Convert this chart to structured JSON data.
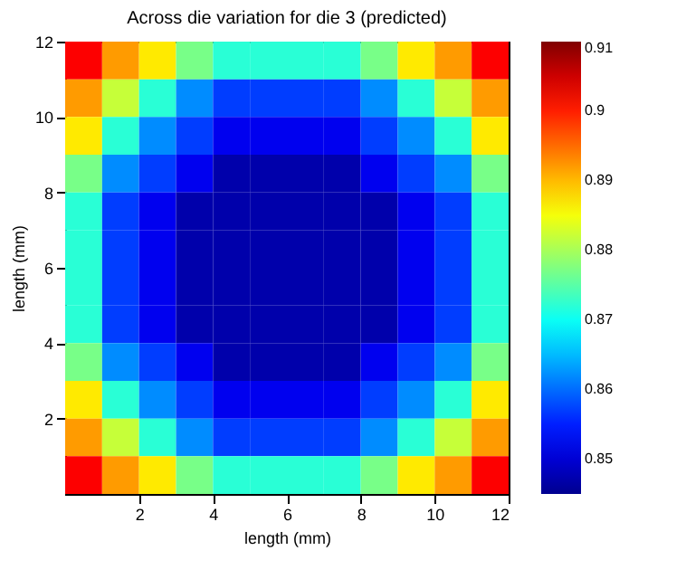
{
  "chart_data": {
    "type": "heatmap",
    "title": "Across die variation for die 3 (predicted)",
    "xlabel": "length (mm)",
    "ylabel": "length (mm)",
    "x": [
      0.5,
      1.5,
      2.5,
      3.5,
      4.5,
      5.5,
      6.5,
      7.5,
      8.5,
      9.5,
      10.5,
      11.5
    ],
    "y": [
      11.5,
      10.5,
      9.5,
      8.5,
      7.5,
      6.5,
      5.5,
      4.5,
      3.5,
      2.5,
      1.5,
      0.5
    ],
    "cells": [
      [
        0.902,
        0.892,
        0.887,
        0.877,
        0.872,
        0.872,
        0.872,
        0.872,
        0.877,
        0.887,
        0.892,
        0.902
      ],
      [
        0.892,
        0.882,
        0.872,
        0.862,
        0.857,
        0.857,
        0.857,
        0.857,
        0.862,
        0.872,
        0.882,
        0.892
      ],
      [
        0.887,
        0.872,
        0.862,
        0.857,
        0.852,
        0.852,
        0.852,
        0.852,
        0.857,
        0.862,
        0.872,
        0.887
      ],
      [
        0.877,
        0.862,
        0.857,
        0.852,
        0.847,
        0.847,
        0.847,
        0.847,
        0.852,
        0.857,
        0.862,
        0.877
      ],
      [
        0.872,
        0.857,
        0.852,
        0.847,
        0.847,
        0.847,
        0.847,
        0.847,
        0.847,
        0.852,
        0.857,
        0.872
      ],
      [
        0.872,
        0.857,
        0.852,
        0.847,
        0.847,
        0.847,
        0.847,
        0.847,
        0.847,
        0.852,
        0.857,
        0.872
      ],
      [
        0.872,
        0.857,
        0.852,
        0.847,
        0.847,
        0.847,
        0.847,
        0.847,
        0.847,
        0.852,
        0.857,
        0.872
      ],
      [
        0.872,
        0.857,
        0.852,
        0.847,
        0.847,
        0.847,
        0.847,
        0.847,
        0.847,
        0.852,
        0.857,
        0.872
      ],
      [
        0.877,
        0.862,
        0.857,
        0.852,
        0.847,
        0.847,
        0.847,
        0.847,
        0.852,
        0.857,
        0.862,
        0.877
      ],
      [
        0.887,
        0.872,
        0.862,
        0.857,
        0.852,
        0.852,
        0.852,
        0.852,
        0.857,
        0.862,
        0.872,
        0.887
      ],
      [
        0.892,
        0.882,
        0.872,
        0.862,
        0.857,
        0.857,
        0.857,
        0.857,
        0.862,
        0.872,
        0.882,
        0.892
      ],
      [
        0.902,
        0.892,
        0.887,
        0.877,
        0.872,
        0.872,
        0.872,
        0.872,
        0.877,
        0.887,
        0.892,
        0.902
      ]
    ],
    "xlim": [
      0,
      12
    ],
    "ylim": [
      0,
      12
    ],
    "xticks": [
      2,
      4,
      6,
      8,
      10,
      12
    ],
    "yticks": [
      2,
      4,
      6,
      8,
      10,
      12
    ],
    "clim": [
      0.845,
      0.91
    ],
    "cticks": [
      0.85,
      0.86,
      0.87,
      0.88,
      0.89,
      0.9,
      0.91
    ],
    "grid": false
  }
}
